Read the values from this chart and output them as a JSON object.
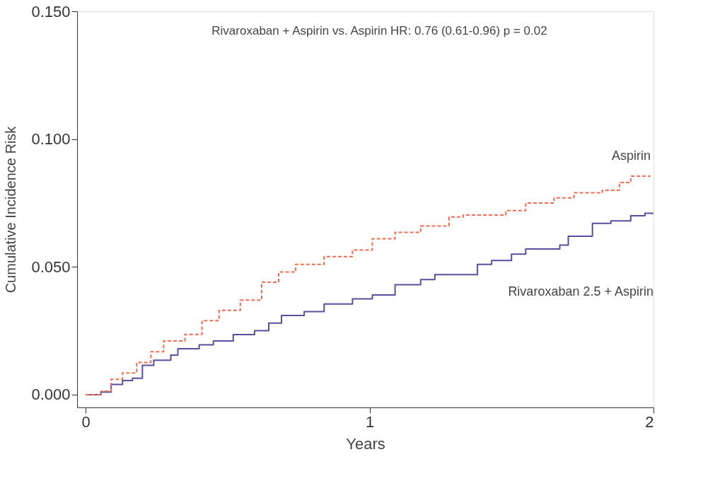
{
  "chart_data": {
    "type": "step",
    "xlabel": "Years",
    "ylabel": "Cumulative Incidence Risk",
    "annotations": [
      "Rivaroxaban + Aspirin vs. Aspirin    HR: 0.76 (0.61-0.96)    p = 0.02"
    ],
    "xlim": [
      -0.03,
      2
    ],
    "xticks": [
      0,
      1,
      2
    ],
    "ylim": [
      -0.005,
      0.15
    ],
    "yticks": [
      {
        "value": 0,
        "label": "0.000"
      },
      {
        "value": 0.05,
        "label": "0.050"
      },
      {
        "value": 0.1,
        "label": "0.100"
      },
      {
        "value": 0.15,
        "label": "0.150"
      }
    ],
    "grid": false,
    "series": [
      {
        "name": "Aspirin",
        "color": "#f26b4f",
        "line_style": "dashed",
        "x": [
          0,
          0.054,
          0.09,
          0.13,
          0.18,
          0.23,
          0.275,
          0.35,
          0.41,
          0.47,
          0.545,
          0.62,
          0.68,
          0.74,
          0.84,
          0.94,
          1.01,
          1.09,
          1.18,
          1.28,
          1.33,
          1.43,
          1.48,
          1.55,
          1.65,
          1.72,
          1.82,
          1.88,
          1.92,
          1.99
        ],
        "values": [
          0,
          0.0014,
          0.006,
          0.0085,
          0.0126,
          0.0168,
          0.021,
          0.0236,
          0.029,
          0.033,
          0.037,
          0.044,
          0.048,
          0.051,
          0.054,
          0.0566,
          0.061,
          0.0635,
          0.066,
          0.0695,
          0.0703,
          0.0703,
          0.072,
          0.075,
          0.077,
          0.079,
          0.08,
          0.083,
          0.0855,
          0.0855
        ]
      },
      {
        "name": "Rivaroxaban 2.5 + Aspirin",
        "color": "#5b4e9e",
        "line_style": "solid",
        "x": [
          0,
          0.054,
          0.09,
          0.13,
          0.165,
          0.2,
          0.24,
          0.3,
          0.325,
          0.4,
          0.45,
          0.52,
          0.595,
          0.645,
          0.69,
          0.77,
          0.84,
          0.94,
          1.01,
          1.09,
          1.18,
          1.23,
          1.33,
          1.38,
          1.43,
          1.5,
          1.55,
          1.67,
          1.7,
          1.785,
          1.85,
          1.92,
          1.97,
          2
        ],
        "values": [
          0,
          0.001,
          0.004,
          0.0055,
          0.0064,
          0.0115,
          0.0135,
          0.0155,
          0.018,
          0.0195,
          0.021,
          0.0235,
          0.025,
          0.028,
          0.031,
          0.0325,
          0.0355,
          0.0375,
          0.039,
          0.043,
          0.045,
          0.047,
          0.047,
          0.051,
          0.0525,
          0.055,
          0.057,
          0.0585,
          0.062,
          0.067,
          0.068,
          0.07,
          0.071,
          0.071
        ]
      }
    ]
  }
}
